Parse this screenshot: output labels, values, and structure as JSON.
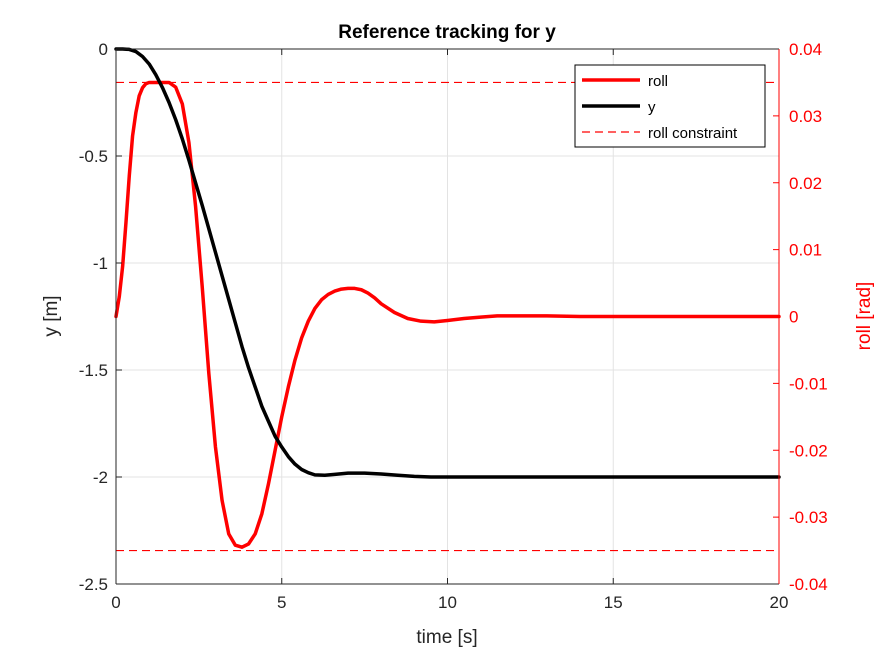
{
  "chart_data": {
    "type": "line",
    "title": "Reference tracking for y",
    "xlabel": "time [s]",
    "ylabel_left": "y [m]",
    "ylabel_right": "roll [rad]",
    "xlim": [
      0,
      20
    ],
    "ylim_left": [
      -2.5,
      0
    ],
    "ylim_right": [
      -0.04,
      0.04
    ],
    "x_ticks": [
      "0",
      "5",
      "10",
      "15",
      "20"
    ],
    "y_ticks_left": [
      "0",
      "-0.5",
      "-1",
      "-1.5",
      "-2",
      "-2.5"
    ],
    "y_ticks_right": [
      "0.04",
      "0.03",
      "0.02",
      "0.01",
      "0",
      "-0.01",
      "-0.02",
      "-0.03",
      "-0.04"
    ],
    "grid": true,
    "legend_position": "top-right",
    "colors": {
      "roll": "#ff0000",
      "y": "#000000",
      "roll_axis": "#ff0000",
      "left_axis": "#000000"
    },
    "series": [
      {
        "name": "roll",
        "axis": "right",
        "x": [
          0,
          0.1,
          0.2,
          0.3,
          0.4,
          0.5,
          0.6,
          0.7,
          0.8,
          0.9,
          1.0,
          1.2,
          1.4,
          1.6,
          1.8,
          2.0,
          2.2,
          2.4,
          2.6,
          2.8,
          3.0,
          3.2,
          3.4,
          3.6,
          3.8,
          4.0,
          4.2,
          4.4,
          4.6,
          4.8,
          5.0,
          5.2,
          5.4,
          5.6,
          5.8,
          6.0,
          6.2,
          6.4,
          6.6,
          6.8,
          7.0,
          7.2,
          7.4,
          7.6,
          7.8,
          8.0,
          8.4,
          8.8,
          9.2,
          9.6,
          10.0,
          10.5,
          11.0,
          11.5,
          12.0,
          13.0,
          14.0,
          16.0,
          18.0,
          20.0
        ],
        "y": [
          0.0,
          0.003,
          0.0075,
          0.014,
          0.021,
          0.027,
          0.0305,
          0.033,
          0.0342,
          0.0348,
          0.035,
          0.035,
          0.035,
          0.035,
          0.0343,
          0.0318,
          0.026,
          0.0165,
          0.0045,
          -0.0085,
          -0.0195,
          -0.0275,
          -0.0325,
          -0.0342,
          -0.0345,
          -0.034,
          -0.0325,
          -0.0295,
          -0.025,
          -0.02,
          -0.015,
          -0.0105,
          -0.0065,
          -0.0032,
          -0.0007,
          0.0012,
          0.0025,
          0.0033,
          0.0038,
          0.0041,
          0.0042,
          0.0042,
          0.004,
          0.0035,
          0.0028,
          0.0019,
          0.0006,
          -0.0003,
          -0.0007,
          -0.0008,
          -0.0006,
          -0.0003,
          -0.0001,
          0.0001,
          0.0001,
          0.0001,
          0.0,
          0.0,
          0.0,
          0.0
        ]
      },
      {
        "name": "y",
        "axis": "left",
        "x": [
          0,
          0.2,
          0.4,
          0.6,
          0.8,
          1.0,
          1.2,
          1.4,
          1.6,
          1.8,
          2.0,
          2.2,
          2.4,
          2.6,
          2.8,
          3.0,
          3.2,
          3.4,
          3.6,
          3.8,
          4.0,
          4.2,
          4.4,
          4.6,
          4.8,
          5.0,
          5.2,
          5.4,
          5.6,
          5.8,
          6.0,
          6.3,
          6.6,
          7.0,
          7.5,
          8.0,
          8.5,
          9.0,
          9.5,
          10.0,
          11.0,
          12.0,
          14.0,
          16.0,
          18.0,
          20.0
        ],
        "y": [
          0,
          0,
          -0.002,
          -0.012,
          -0.035,
          -0.07,
          -0.12,
          -0.18,
          -0.25,
          -0.33,
          -0.42,
          -0.52,
          -0.625,
          -0.73,
          -0.84,
          -0.95,
          -1.06,
          -1.17,
          -1.28,
          -1.39,
          -1.49,
          -1.58,
          -1.67,
          -1.74,
          -1.81,
          -1.86,
          -1.905,
          -1.94,
          -1.965,
          -1.98,
          -1.99,
          -1.992,
          -1.988,
          -1.982,
          -1.982,
          -1.986,
          -1.992,
          -1.997,
          -2.0,
          -2.0,
          -2.0,
          -2.0,
          -2.0,
          -2.0,
          -2.0,
          -2.0
        ]
      },
      {
        "name": "roll constraint",
        "axis": "right",
        "style": "dashed",
        "hlines": [
          0.035,
          -0.035
        ]
      }
    ]
  }
}
